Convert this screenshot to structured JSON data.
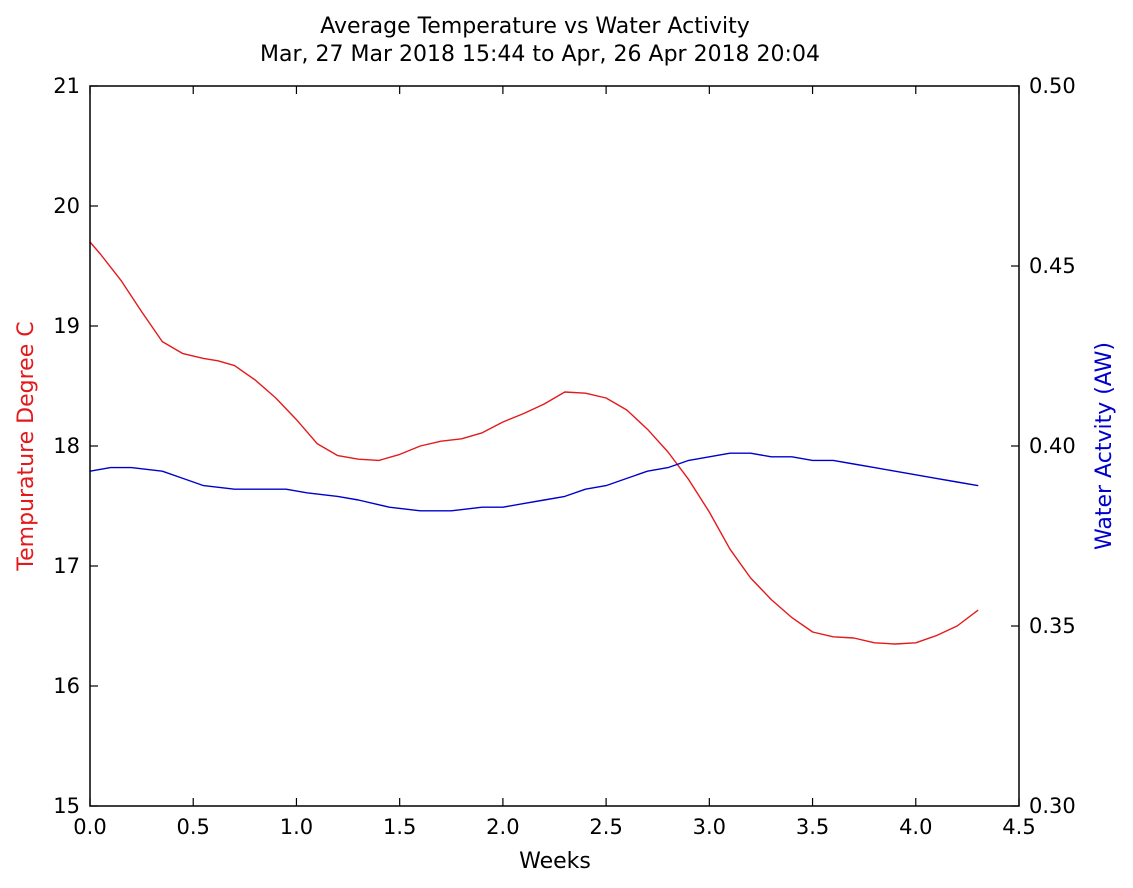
{
  "chart_data": {
    "type": "line",
    "title": "Average Temperature vs Water Activity",
    "subtitle": "Mar, 27 Mar 2018 15:44 to Apr, 26 Apr 2018 20:04",
    "xlabel": "Weeks",
    "ylabel_left": "Tempurature Degree C",
    "ylabel_right": "Water Actvity (AW)",
    "xlim": [
      0,
      4.5
    ],
    "ylim_left": [
      15,
      21
    ],
    "ylim_right": [
      0.3,
      0.5
    ],
    "grid": false,
    "x_ticks": [
      "0.0",
      "0.5",
      "1.0",
      "1.5",
      "2.0",
      "2.5",
      "3.0",
      "3.5",
      "4.0",
      "4.5"
    ],
    "y_left_ticks": [
      "15",
      "16",
      "17",
      "18",
      "19",
      "20",
      "21"
    ],
    "y_right_ticks": [
      "0.30",
      "0.35",
      "0.40",
      "0.45",
      "0.50"
    ],
    "colors": {
      "temperature": "#e31a1c",
      "water_activity": "#0000cc"
    },
    "series": [
      {
        "axis": "left",
        "color": "#e31a1c",
        "x": [
          0.0,
          0.05,
          0.15,
          0.25,
          0.35,
          0.45,
          0.55,
          0.62,
          0.7,
          0.8,
          0.9,
          1.0,
          1.1,
          1.2,
          1.3,
          1.4,
          1.5,
          1.6,
          1.7,
          1.8,
          1.9,
          2.0,
          2.1,
          2.2,
          2.3,
          2.4,
          2.5,
          2.6,
          2.7,
          2.8,
          2.9,
          3.0,
          3.1,
          3.2,
          3.3,
          3.4,
          3.5,
          3.6,
          3.7,
          3.8,
          3.9,
          4.0,
          4.1,
          4.2,
          4.3
        ],
        "y": [
          19.7,
          19.6,
          19.38,
          19.12,
          18.87,
          18.77,
          18.73,
          18.71,
          18.67,
          18.55,
          18.4,
          18.22,
          18.02,
          17.92,
          17.89,
          17.88,
          17.93,
          18.0,
          18.04,
          18.06,
          18.11,
          18.2,
          18.27,
          18.35,
          18.45,
          18.44,
          18.4,
          18.3,
          18.14,
          17.95,
          17.72,
          17.45,
          17.14,
          16.9,
          16.72,
          16.57,
          16.45,
          16.41,
          16.4,
          16.36,
          16.35,
          16.36,
          16.42,
          16.5,
          16.63
        ]
      },
      {
        "axis": "right",
        "color": "#0000cc",
        "x": [
          0.0,
          0.1,
          0.2,
          0.35,
          0.45,
          0.55,
          0.7,
          0.8,
          0.95,
          1.05,
          1.2,
          1.3,
          1.45,
          1.6,
          1.75,
          1.9,
          2.0,
          2.1,
          2.2,
          2.3,
          2.4,
          2.5,
          2.6,
          2.7,
          2.8,
          2.9,
          3.0,
          3.1,
          3.2,
          3.3,
          3.4,
          3.5,
          3.6,
          3.7,
          3.8,
          3.9,
          4.0,
          4.1,
          4.2,
          4.3
        ],
        "y": [
          0.393,
          0.394,
          0.394,
          0.393,
          0.391,
          0.389,
          0.388,
          0.388,
          0.388,
          0.387,
          0.386,
          0.385,
          0.383,
          0.382,
          0.382,
          0.383,
          0.383,
          0.384,
          0.385,
          0.386,
          0.388,
          0.389,
          0.391,
          0.393,
          0.394,
          0.396,
          0.397,
          0.398,
          0.398,
          0.397,
          0.397,
          0.396,
          0.396,
          0.395,
          0.394,
          0.393,
          0.392,
          0.391,
          0.39,
          0.389
        ]
      }
    ]
  }
}
